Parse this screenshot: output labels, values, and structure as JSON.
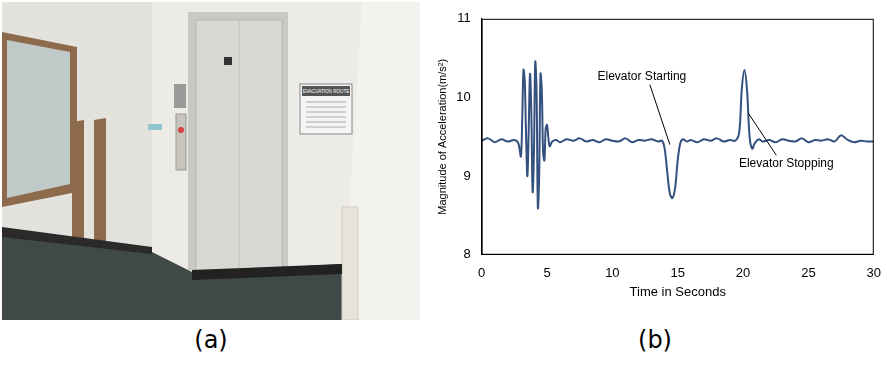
{
  "panels": [
    {
      "label": "(a)",
      "image": {
        "sign_text": "EVACUATION ROUTE"
      }
    },
    {
      "label": "(b)"
    }
  ],
  "chart_data": {
    "type": "line",
    "x_label": "Time in Seconds",
    "y_label": "Magnitude of Acceleration(m/s²)",
    "xlim": [
      0,
      30
    ],
    "xticks": [
      0,
      5,
      10,
      15,
      20,
      25,
      30
    ],
    "ylim": [
      8,
      11
    ],
    "yticks": [
      8,
      9,
      10,
      11
    ],
    "grid": false,
    "color": "#33507f",
    "x": [
      0,
      0.5,
      1,
      1.5,
      2,
      2.5,
      2.8,
      3,
      3.1,
      3.2,
      3.3,
      3.4,
      3.5,
      3.6,
      3.7,
      3.8,
      3.9,
      4,
      4.1,
      4.2,
      4.3,
      4.4,
      4.5,
      4.6,
      4.7,
      4.8,
      4.9,
      5,
      5.1,
      5.2,
      5.4,
      5.7,
      6,
      6.5,
      7,
      7.5,
      8,
      8.5,
      9,
      9.5,
      10,
      10.5,
      11,
      11.5,
      12,
      12.5,
      13,
      13.5,
      13.8,
      14,
      14.2,
      14.4,
      14.6,
      14.8,
      15,
      15.2,
      15.4,
      15.7,
      16,
      16.5,
      17,
      17.5,
      18,
      18.5,
      19,
      19.4,
      19.7,
      19.9,
      20.1,
      20.3,
      20.5,
      20.7,
      20.9,
      21.2,
      21.5,
      22,
      22.5,
      23,
      23.5,
      24,
      24.5,
      25,
      25.5,
      26,
      26.5,
      27,
      27.5,
      28,
      28.5,
      29,
      29.5,
      30
    ],
    "values": [
      9.45,
      9.48,
      9.43,
      9.47,
      9.44,
      9.46,
      9.42,
      9.25,
      9.7,
      10.35,
      10.2,
      9.5,
      9.0,
      9.6,
      10.3,
      9.8,
      8.8,
      9.3,
      10.45,
      10.1,
      8.6,
      9.0,
      10.3,
      10.1,
      9.3,
      9.2,
      9.6,
      9.65,
      9.5,
      9.38,
      9.44,
      9.46,
      9.43,
      9.47,
      9.45,
      9.48,
      9.44,
      9.46,
      9.43,
      9.47,
      9.45,
      9.44,
      9.48,
      9.43,
      9.46,
      9.45,
      9.47,
      9.44,
      9.45,
      9.35,
      9.05,
      8.78,
      8.72,
      8.85,
      9.2,
      9.42,
      9.47,
      9.44,
      9.46,
      9.43,
      9.47,
      9.45,
      9.48,
      9.44,
      9.46,
      9.45,
      9.55,
      10.1,
      10.35,
      10.1,
      9.5,
      9.35,
      9.42,
      9.47,
      9.44,
      9.46,
      9.43,
      9.47,
      9.45,
      9.44,
      9.48,
      9.43,
      9.46,
      9.45,
      9.47,
      9.44,
      9.52,
      9.46,
      9.43,
      9.45,
      9.44,
      9.44
    ],
    "annotations": [
      {
        "text": "Elevator Starting",
        "x": 14.4,
        "y": 9.4
      },
      {
        "text": "Elevator Stopping",
        "x": 20.4,
        "y": 9.8
      }
    ]
  }
}
